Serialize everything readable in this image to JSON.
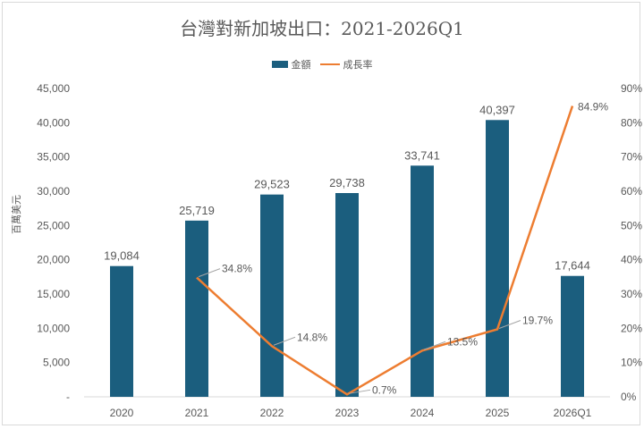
{
  "chart_data": {
    "type": "bar+line",
    "title": "台灣對新加坡出口：2021-2026Q1",
    "ylabel": "百萬美元",
    "categories": [
      "2020",
      "2021",
      "2022",
      "2023",
      "2024",
      "2025",
      "2026Q1"
    ],
    "series": [
      {
        "name": "金額",
        "type": "bar",
        "axis": "left",
        "color": "#1b5e7e",
        "values": [
          19084,
          25719,
          29523,
          29738,
          33741,
          40397,
          17644
        ],
        "labels": [
          "19,084",
          "25,719",
          "29,523",
          "29,738",
          "33,741",
          "40,397",
          "17,644"
        ]
      },
      {
        "name": "成長率",
        "type": "line",
        "axis": "right",
        "color": "#ed7d31",
        "values": [
          null,
          34.8,
          14.8,
          0.7,
          13.5,
          19.7,
          84.9
        ],
        "labels": [
          "",
          "34.8%",
          "14.8%",
          "0.7%",
          "13.5%",
          "19.7%",
          "84.9%"
        ]
      }
    ],
    "left_axis": {
      "range": [
        0,
        45000
      ],
      "ticks": [
        "-",
        "5,000",
        "10,000",
        "15,000",
        "20,000",
        "25,000",
        "30,000",
        "35,000",
        "40,000",
        "45,000"
      ]
    },
    "right_axis": {
      "range": [
        0,
        90
      ],
      "ticks": [
        "0%",
        "10%",
        "20%",
        "30%",
        "40%",
        "50%",
        "60%",
        "70%",
        "80%",
        "90%"
      ]
    },
    "grid": false,
    "legend": "top"
  }
}
